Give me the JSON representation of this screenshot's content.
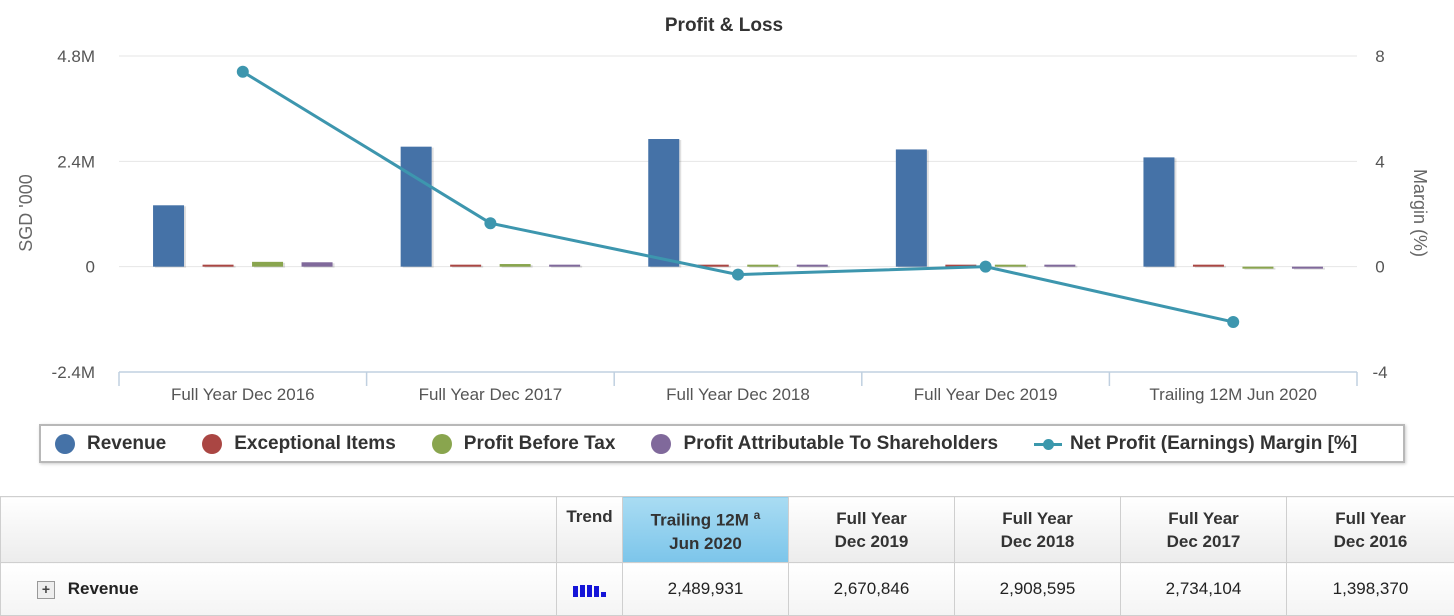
{
  "chart_data": {
    "type": "bar",
    "title": "Profit & Loss",
    "categories": [
      "Full Year Dec 2016",
      "Full Year Dec 2017",
      "Full Year Dec 2018",
      "Full Year Dec 2019",
      "Trailing 12M Jun 2020"
    ],
    "ylabel": "SGD '000",
    "y2label": "Margin (%)",
    "ylim": [
      -2400000,
      4800000
    ],
    "y2lim": [
      -4,
      8
    ],
    "yticks": [
      "4.8M",
      "2.4M",
      "0",
      "-2.4M"
    ],
    "y2ticks": [
      "8",
      "4",
      "0",
      "-4"
    ],
    "legend_position": "bottom",
    "series": [
      {
        "name": "Revenue",
        "type": "bar",
        "color": "#4572a7",
        "values": [
          1398370,
          2734104,
          2908595,
          2670846,
          2489931
        ]
      },
      {
        "name": "Exceptional Items",
        "type": "bar",
        "color": "#aa4643",
        "values": [
          0,
          0,
          0,
          0,
          0
        ]
      },
      {
        "name": "Profit Before Tax",
        "type": "bar",
        "color": "#89a54e",
        "values": [
          110000,
          60000,
          10000,
          5000,
          -30000
        ]
      },
      {
        "name": "Profit Attributable To Shareholders",
        "type": "bar",
        "color": "#80699b",
        "values": [
          100000,
          45000,
          5000,
          0,
          -40000
        ]
      },
      {
        "name": "Net Profit (Earnings) Margin [%]",
        "type": "line",
        "axis": "right",
        "color": "#3d96ae",
        "values": [
          7.4,
          1.65,
          -0.3,
          0.0,
          -2.1
        ]
      }
    ]
  },
  "table": {
    "headers": [
      "",
      "Trend",
      "Trailing 12M",
      "Jun 2020",
      "Full Year",
      "Dec 2019",
      "Full Year",
      "Dec 2018",
      "Full Year",
      "Dec 2017",
      "Full Year",
      "Dec 2016"
    ],
    "trailing_sup": "a",
    "rows": [
      {
        "label": "Revenue",
        "values": [
          "2,489,931",
          "2,670,846",
          "2,908,595",
          "2,734,104",
          "1,398,370"
        ]
      }
    ]
  }
}
